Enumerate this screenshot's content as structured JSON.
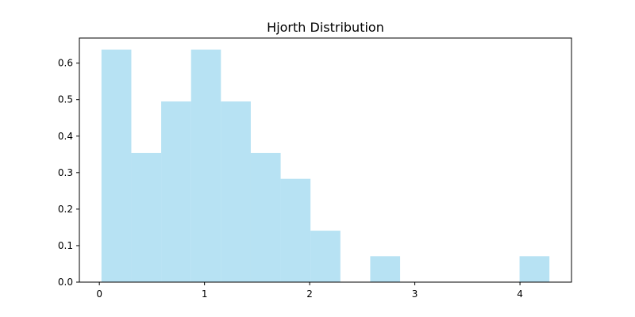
{
  "chart_data": {
    "type": "bar",
    "title": "Hjorth Distribution",
    "xlabel": "",
    "ylabel": "",
    "histogram": true,
    "bin_edges": [
      0.02,
      0.304,
      0.588,
      0.872,
      1.156,
      1.44,
      1.724,
      2.008,
      2.292,
      2.576,
      2.86,
      3.144,
      3.428,
      3.712,
      3.996,
      4.28
    ],
    "values": [
      0.637,
      0.354,
      0.495,
      0.637,
      0.495,
      0.354,
      0.283,
      0.141,
      0,
      0.071,
      0,
      0,
      0,
      0,
      0.071
    ],
    "xlim": [
      -0.19,
      4.49
    ],
    "ylim": [
      0,
      0.6687
    ],
    "x_ticks": [
      0,
      1,
      2,
      3,
      4
    ],
    "x_tick_labels": [
      "0",
      "1",
      "2",
      "3",
      "4"
    ],
    "y_ticks": [
      0.0,
      0.1,
      0.2,
      0.3,
      0.4,
      0.5,
      0.6
    ],
    "y_tick_labels": [
      "0.0",
      "0.1",
      "0.2",
      "0.3",
      "0.4",
      "0.5",
      "0.6"
    ],
    "bar_color": "#87ceeb",
    "bar_opacity": 0.6,
    "grid": false,
    "legend": "none"
  }
}
